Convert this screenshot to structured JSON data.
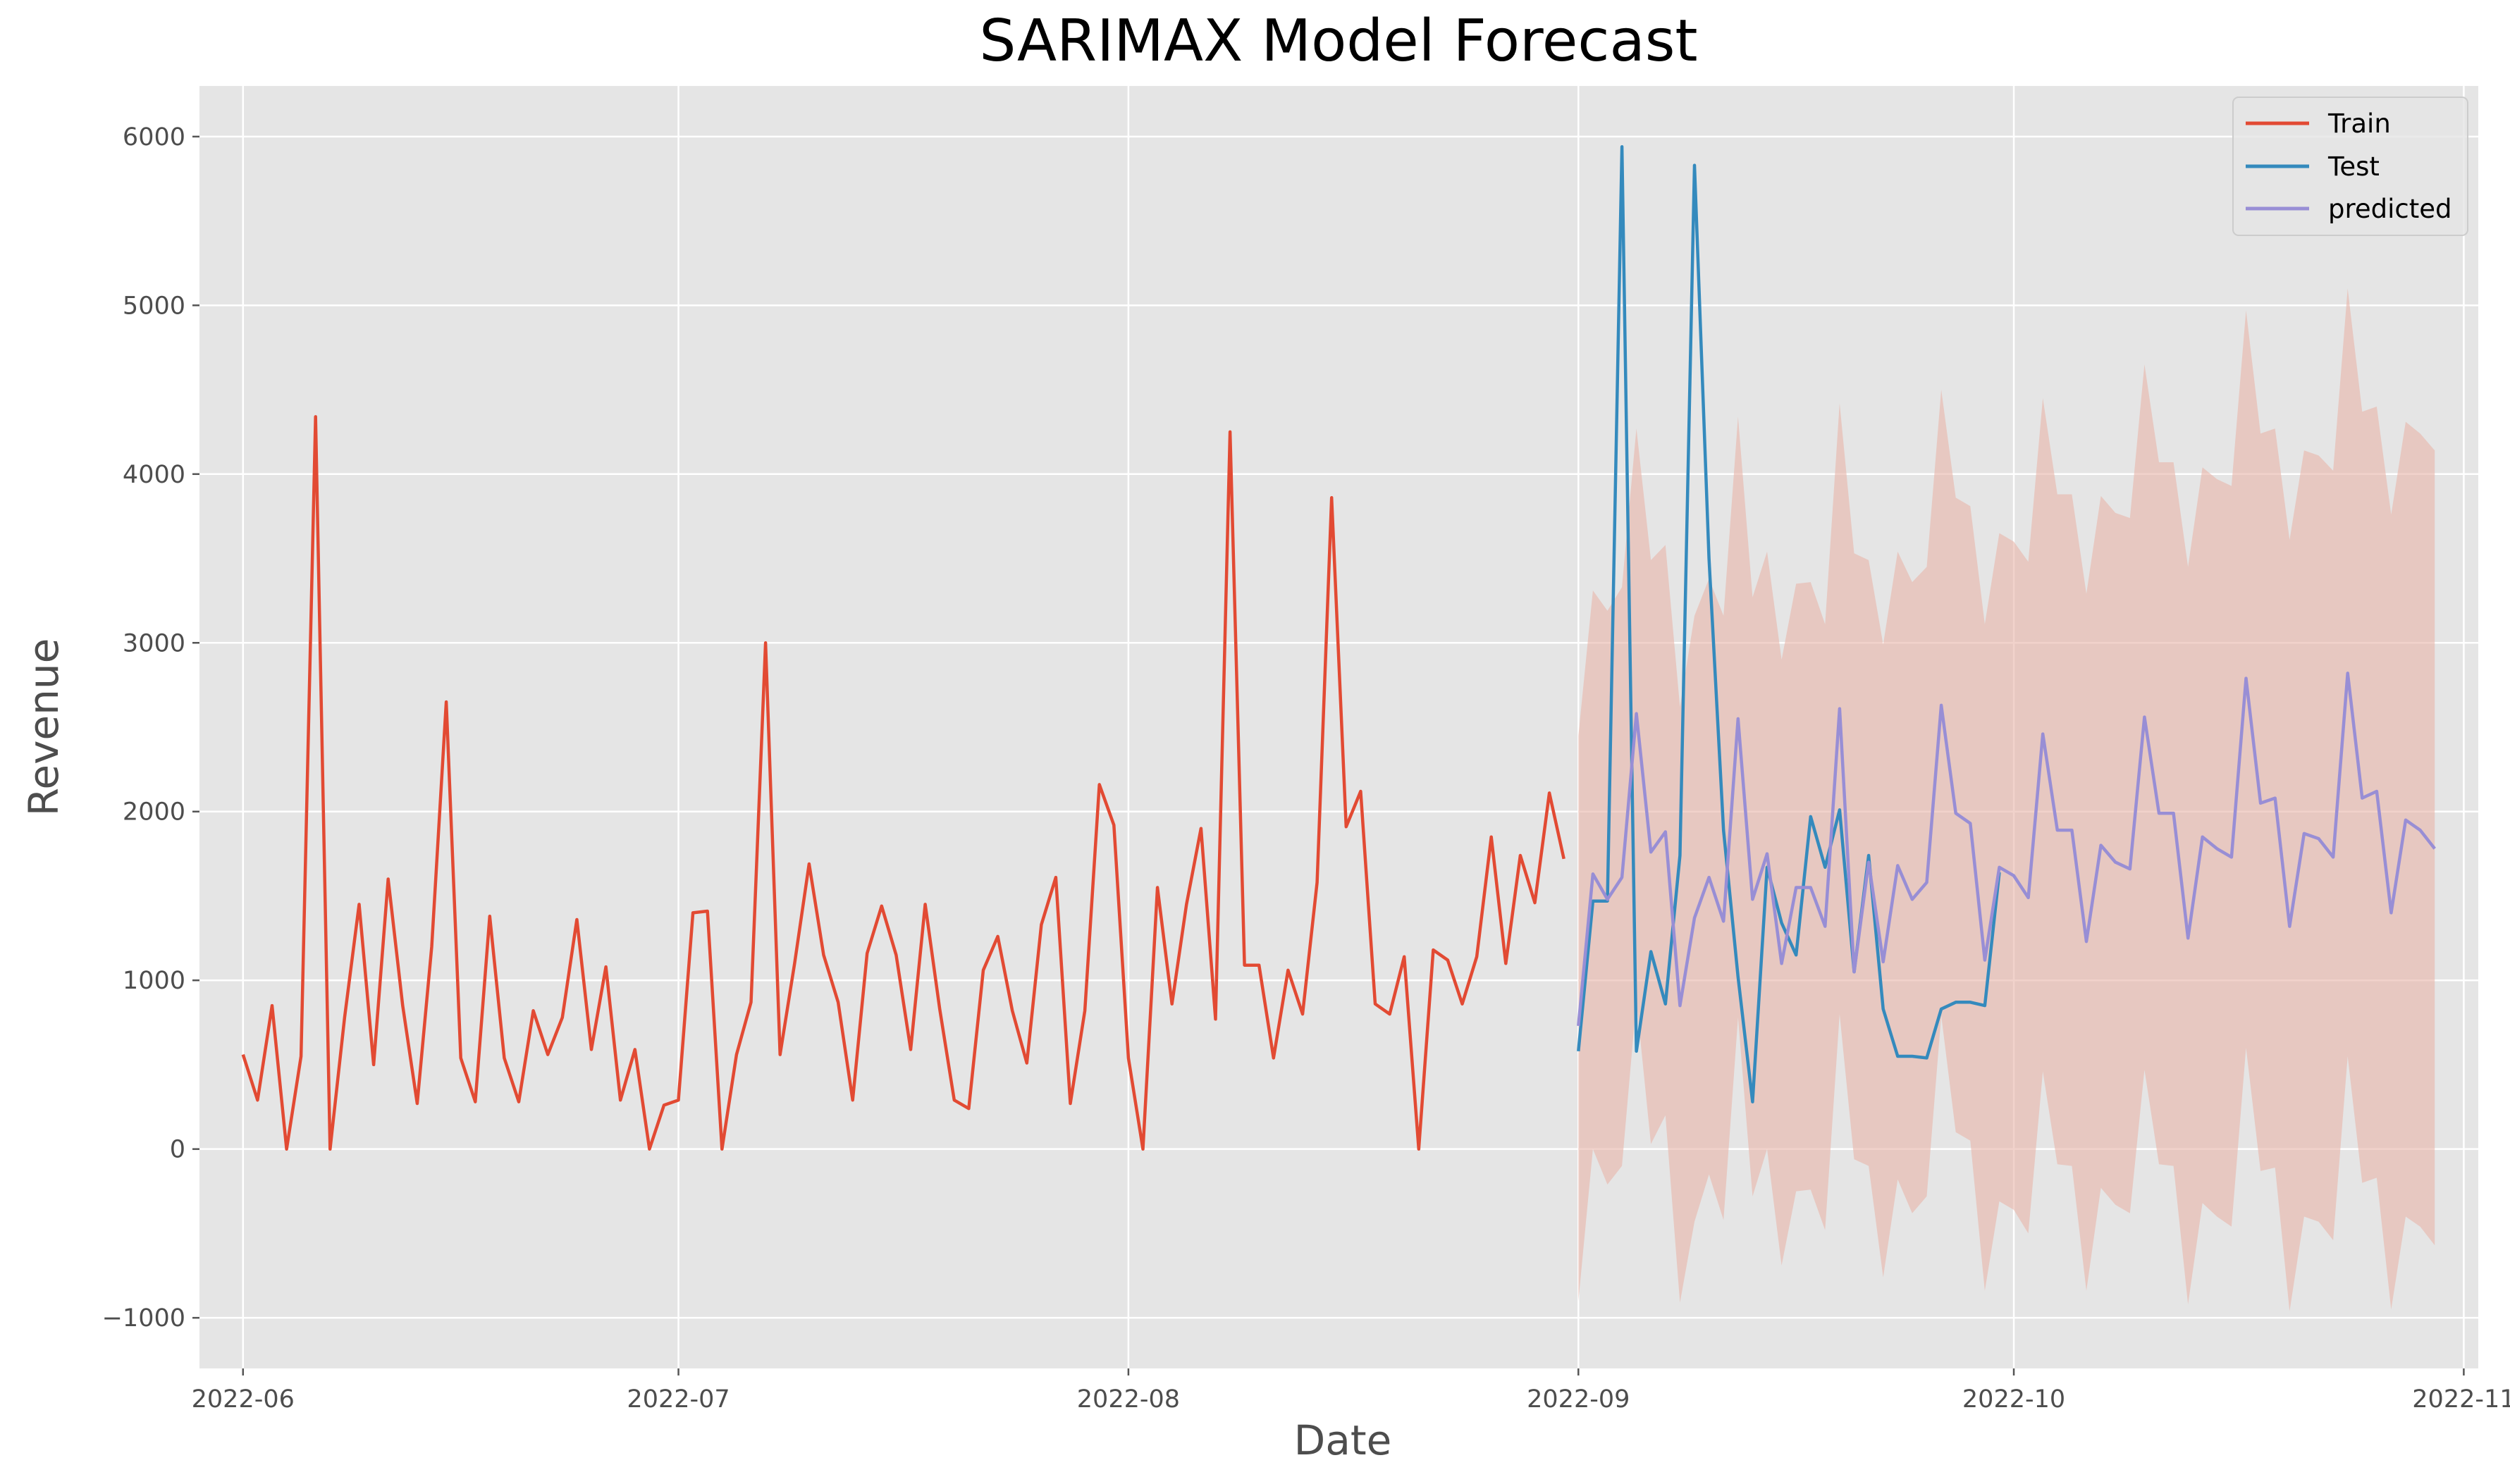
{
  "chart_data": {
    "type": "line",
    "title": "SARIMAX Model Forecast",
    "xlabel": "Date",
    "ylabel": "Revenue",
    "xlim": [
      "2022-05-29",
      "2022-11-02"
    ],
    "ylim": [
      -1300,
      6300
    ],
    "x_ticks": [
      "2022-06-01",
      "2022-07-01",
      "2022-08-01",
      "2022-09-01",
      "2022-10-01",
      "2022-11-01"
    ],
    "x_tick_labels": [
      "2022-06",
      "2022-07",
      "2022-08",
      "2022-09",
      "2022-10",
      "2022-11"
    ],
    "y_ticks": [
      -1000,
      0,
      1000,
      2000,
      3000,
      4000,
      5000,
      6000
    ],
    "y_tick_labels": [
      "−1000",
      "0",
      "1000",
      "2000",
      "3000",
      "4000",
      "5000",
      "6000"
    ],
    "grid": true,
    "legend_position": "top-right",
    "colors": {
      "plot_background": "#e5e5e5",
      "grid": "#ffffff",
      "train": "#e24a33",
      "test": "#348abd",
      "predicted": "#988ed5",
      "confidence_band": "#e8b4a8"
    },
    "series": [
      {
        "name": "Train",
        "start_date": "2022-06-01",
        "values": [
          560,
          290,
          850,
          0,
          550,
          4340,
          0,
          780,
          1450,
          500,
          1600,
          850,
          270,
          1200,
          2650,
          540,
          280,
          1380,
          540,
          280,
          820,
          560,
          780,
          1360,
          590,
          1080,
          290,
          590,
          0,
          260,
          290,
          1400,
          1410,
          0,
          560,
          870,
          3000,
          560,
          1100,
          1690,
          1150,
          870,
          290,
          1160,
          1440,
          1150,
          590,
          1450,
          830,
          290,
          240,
          1060,
          1260,
          820,
          510,
          1330,
          1610,
          270,
          820,
          2160,
          1920,
          540,
          0,
          1550,
          860,
          1450,
          1900,
          770,
          4250,
          1090,
          1090,
          540,
          1060,
          800,
          1580,
          3860,
          1910,
          2120,
          860,
          800,
          1140,
          0,
          1180,
          1120,
          860,
          1140,
          1850,
          1100,
          1740,
          1460,
          2110,
          1720
        ]
      },
      {
        "name": "Test",
        "start_date": "2022-09-01",
        "values": [
          580,
          1470,
          1470,
          5940,
          580,
          1170,
          860,
          1740,
          5830,
          3500,
          1890,
          1020,
          280,
          1670,
          1340,
          1150,
          1970,
          1670,
          2010,
          1050,
          1740,
          830,
          550,
          550,
          540,
          830,
          870,
          870,
          850,
          1640
        ]
      },
      {
        "name": "predicted",
        "start_date": "2022-09-01",
        "values": [
          730,
          1630,
          1480,
          1610,
          2580,
          1760,
          1880,
          850,
          1370,
          1610,
          1350,
          2550,
          1480,
          1750,
          1100,
          1550,
          1550,
          1320,
          2610,
          1050,
          1700,
          1110,
          1680,
          1480,
          1580,
          2630,
          1990,
          1930,
          1120,
          1670,
          1620,
          1490,
          2460,
          1890,
          1890,
          1230,
          1800,
          1700,
          1660,
          2560,
          1990,
          1990,
          1250,
          1850,
          1780,
          1730,
          2790,
          2050,
          2080,
          1320,
          1870,
          1840,
          1730,
          2820,
          2080,
          2120,
          1400,
          1950,
          1890,
          1780
        ],
        "lower": [
          -900,
          0,
          -210,
          -100,
          880,
          30,
          200,
          -910,
          -430,
          -150,
          -420,
          780,
          -280,
          0,
          -690,
          -250,
          -240,
          -480,
          800,
          -60,
          -100,
          -760,
          -180,
          -380,
          -280,
          790,
          100,
          50,
          -840,
          -310,
          -360,
          -500,
          460,
          -90,
          -100,
          -840,
          -230,
          -330,
          -380,
          470,
          -90,
          -100,
          -920,
          -320,
          -400,
          -460,
          600,
          -130,
          -110,
          -960,
          -400,
          -430,
          -540,
          550,
          -200,
          -170,
          -950,
          -400,
          -460,
          -570
        ],
        "upper": [
          2450,
          3310,
          3190,
          3330,
          4270,
          3490,
          3580,
          2620,
          3160,
          3380,
          3160,
          4340,
          3270,
          3540,
          2900,
          3350,
          3360,
          3110,
          4420,
          3530,
          3490,
          2990,
          3540,
          3360,
          3450,
          4500,
          3860,
          3810,
          3110,
          3650,
          3600,
          3480,
          4450,
          3880,
          3880,
          3290,
          3870,
          3770,
          3740,
          4650,
          4070,
          4070,
          3450,
          4040,
          3970,
          3930,
          4970,
          4240,
          4270,
          3610,
          4140,
          4110,
          4020,
          5100,
          4370,
          4400,
          3760,
          4310,
          4240,
          4140
        ]
      }
    ]
  }
}
